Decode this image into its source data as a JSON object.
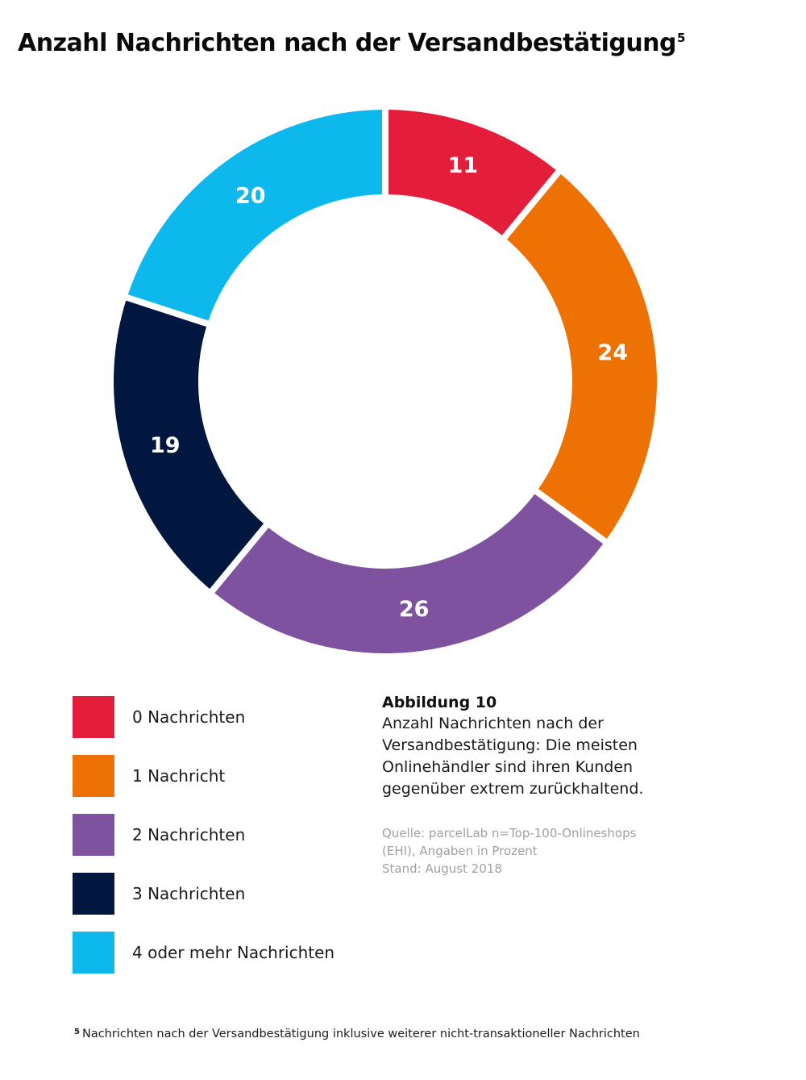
{
  "header": {
    "title": "Anzahl Nachrichten nach der Versandbestätigung",
    "footnote_ref": "5"
  },
  "chart_data": {
    "type": "pie",
    "variant": "donut",
    "title": "Anzahl Nachrichten nach der Versandbestätigung",
    "categories": [
      "0 Nachrichten",
      "1 Nachricht",
      "2 Nachrichten",
      "3 Nachrichten",
      "4 oder mehr Nachrichten"
    ],
    "values": [
      11,
      24,
      26,
      19,
      20
    ],
    "colors": [
      "#e41d3b",
      "#ee7203",
      "#7e529e",
      "#021740",
      "#0db9ec"
    ],
    "unit": "Prozent",
    "legend_position": "bottom-left"
  },
  "legend": {
    "items": [
      {
        "label": "0 Nachrichten",
        "color": "#e41d3b"
      },
      {
        "label": "1 Nachricht",
        "color": "#ee7203"
      },
      {
        "label": "2 Nachrichten",
        "color": "#7e529e"
      },
      {
        "label": "3 Nachrichten",
        "color": "#021740"
      },
      {
        "label": "4 oder mehr Nachrichten",
        "color": "#0db9ec"
      }
    ]
  },
  "caption": {
    "heading": "Abbildung 10",
    "text": "Anzahl Nachrichten nach der Versandbestätigung: Die meisten Onlinehändler sind ihren Kunden gegenüber extrem zurückhaltend.",
    "source_lines": [
      "Quelle: parcelLab n=Top-100-Onlineshops",
      "(EHI), Angaben in Prozent",
      "Stand: August 2018"
    ]
  },
  "footnote": {
    "mark": "5",
    "text": "Nachrichten nach der Versandbestätigung inklusive weiterer nicht-transaktioneller Nachrichten"
  }
}
